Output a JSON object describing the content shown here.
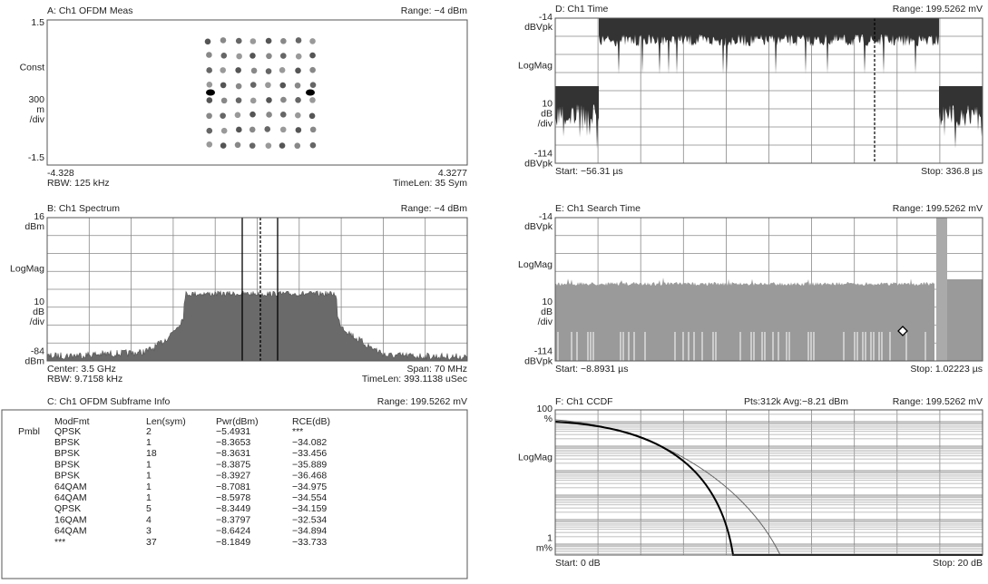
{
  "panels": [
    {
      "title": "A: Ch1 OFDM Meas",
      "range": "Range: −4 dBm",
      "y_labels": [
        [
          "1.5"
        ],
        [
          "Const"
        ],
        [
          "300",
          "m",
          "/div"
        ],
        [
          "-1.5"
        ]
      ],
      "footer_left": [
        "-4.328",
        "RBW: 125 kHz"
      ],
      "footer_right": [
        "4.3277",
        "TimeLen: 35  Sym"
      ]
    },
    {
      "title": "B: Ch1 Spectrum",
      "range": "Range: −4 dBm",
      "y_labels": [
        [
          "16",
          "dBm"
        ],
        [
          "LogMag"
        ],
        [
          "10",
          "dB",
          "/div"
        ],
        [
          "-84",
          "dBm"
        ]
      ],
      "footer_left": [
        "Center: 3.5 GHz",
        "RBW: 9.7158 kHz"
      ],
      "footer_right": [
        "Span: 70 MHz",
        "TimeLen: 393.1138 uSec"
      ]
    },
    {
      "title": "D: Ch1 Time",
      "range": "Range: 199.5262 mV",
      "y_labels": [
        [
          "-14",
          "dBVpk"
        ],
        [
          "LogMag"
        ],
        [
          "10",
          "dB",
          "/div"
        ],
        [
          "-114",
          "dBVpk"
        ]
      ],
      "footer_left": [
        "Start: −56.31 µs"
      ],
      "footer_right": [
        "Stop: 336.8 µs"
      ]
    },
    {
      "title": "E: Ch1 Search Time",
      "range": "Range: 199.5262 mV",
      "y_labels": [
        [
          "-14",
          "dBVpk"
        ],
        [
          "LogMag"
        ],
        [
          "10",
          "dB",
          "/div"
        ],
        [
          "-114",
          "dBVpk"
        ]
      ],
      "footer_left": [
        "Start: −8.8931 µs"
      ],
      "footer_right": [
        "Stop: 1.02223 µs"
      ]
    },
    {
      "title": "F: Ch1 CCDF",
      "subtitle": "Pts:312k Avg:−8.21 dBm",
      "range": "Range: 199.5262 mV",
      "y_labels": [
        [
          "100",
          "%"
        ],
        [
          "LogMag"
        ],
        [
          "1",
          "m%"
        ]
      ],
      "footer_left": [
        "Start: 0 dB"
      ],
      "footer_right": [
        "Stop: 20 dB"
      ]
    }
  ],
  "table": {
    "title": "C: Ch1 OFDM Subframe Info",
    "range": "Range: 199.5262 mV",
    "header": [
      "ModFmt",
      "Len(sym)",
      "Pwr(dBm)",
      "RCE(dB)"
    ],
    "rows": [
      {
        "label": "Pmbl",
        "cells": [
          "QPSK",
          "2",
          "−5.4931",
          "***"
        ]
      },
      {
        "cells": [
          "BPSK",
          "1",
          "−8.3653",
          "−34.082"
        ]
      },
      {
        "cells": [
          "BPSK",
          "18",
          "−8.3631",
          "−33.456"
        ]
      },
      {
        "cells": [
          "BPSK",
          "1",
          "−8.3875",
          "−35.889"
        ]
      },
      {
        "cells": [
          "BPSK",
          "1",
          "−8.3927",
          "−36.468"
        ]
      },
      {
        "cells": [
          "64QAM",
          "1",
          "−8.7081",
          "−34.975"
        ]
      },
      {
        "cells": [
          "64QAM",
          "1",
          "−8.5978",
          "−34.554"
        ]
      },
      {
        "cells": [
          "QPSK",
          "5",
          "−8.3449",
          "−34.159"
        ]
      },
      {
        "cells": [
          "16QAM",
          "4",
          "−8.3797",
          "−32.534"
        ]
      },
      {
        "cells": [
          "64QAM",
          "3",
          "−8.6424",
          "−34.894"
        ]
      },
      {
        "cells": [
          "***",
          "37",
          "−8.1849",
          "−33.733"
        ]
      }
    ]
  }
}
